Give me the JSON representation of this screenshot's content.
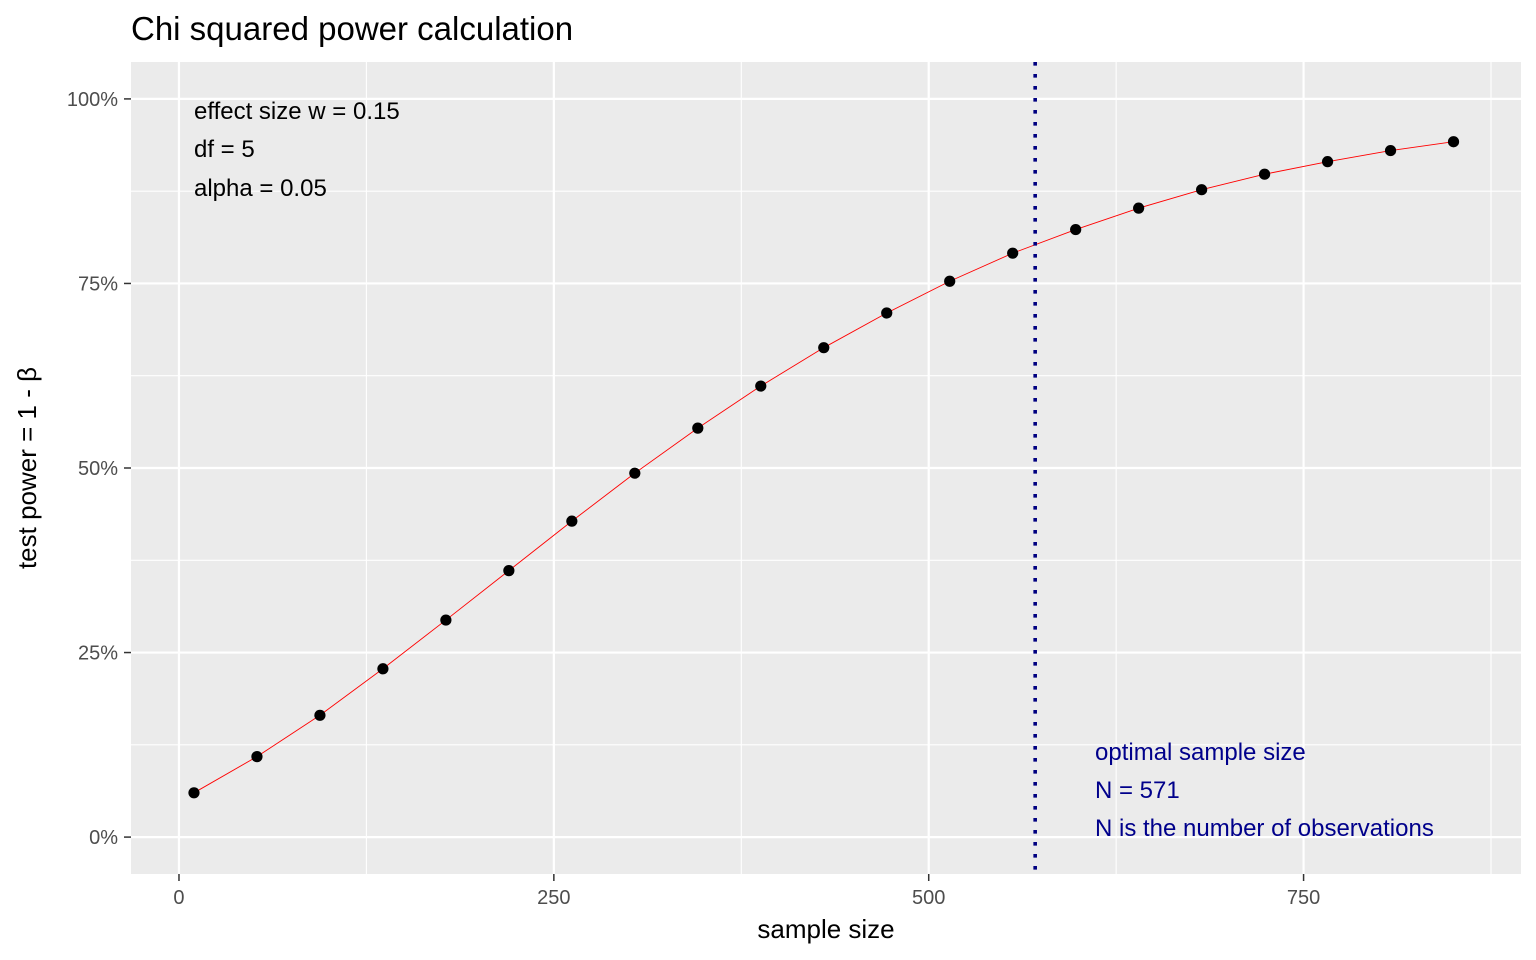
{
  "chart_data": {
    "type": "line",
    "title": "Chi squared power calculation",
    "xlabel": "sample size",
    "ylabel": "test power = 1 - β",
    "xlim": [
      -32,
      895
    ],
    "ylim": [
      -0.05,
      1.05
    ],
    "x_ticks": [
      0,
      250,
      500,
      750
    ],
    "x_tick_labels": [
      "0",
      "250",
      "500",
      "750"
    ],
    "y_ticks": [
      0,
      0.25,
      0.5,
      0.75,
      1.0
    ],
    "y_tick_labels": [
      "0%",
      "25%",
      "50%",
      "75%",
      "100%"
    ],
    "grid": true,
    "series": [
      {
        "line_color": "#ff0000",
        "point_color": "#000000",
        "x": [
          10,
          52,
          94,
          136,
          178,
          220,
          262,
          304,
          346,
          388,
          430,
          472,
          514,
          556,
          598,
          640,
          682,
          724,
          766,
          808,
          850
        ],
        "y": [
          0.06,
          0.109,
          0.165,
          0.228,
          0.294,
          0.361,
          0.428,
          0.493,
          0.554,
          0.611,
          0.663,
          0.71,
          0.753,
          0.791,
          0.823,
          0.852,
          0.877,
          0.898,
          0.915,
          0.93,
          0.942
        ]
      }
    ],
    "vline": {
      "x": 571,
      "color": "#000080",
      "style": "dotted"
    },
    "annotations": {
      "params": {
        "color": "#000000",
        "lines": [
          "effect size w = 0.15",
          "df = 5",
          "alpha = 0.05"
        ]
      },
      "optimal": {
        "color": "#00008b",
        "lines": [
          "optimal sample size",
          "N = 571",
          "N is the number of observations"
        ]
      }
    }
  },
  "colors": {
    "panel_background": "#ebebeb",
    "grid_major": "#ffffff",
    "tick_color": "#333333"
  }
}
